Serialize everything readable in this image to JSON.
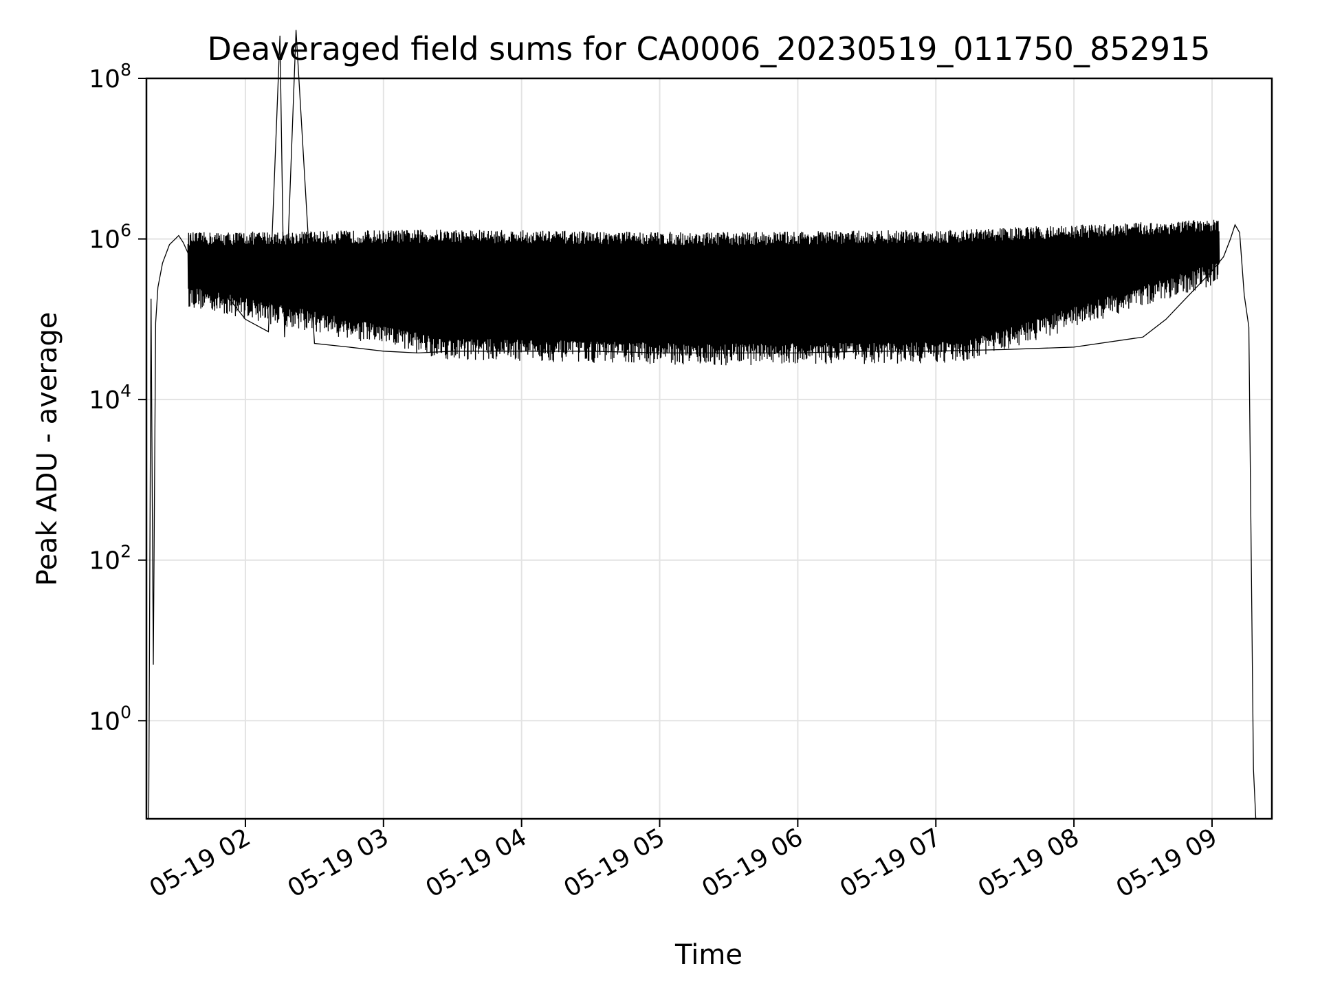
{
  "chart_data": {
    "type": "line",
    "title": "Deaveraged field sums for CA0006_20230519_011750_852915",
    "xlabel": "Time",
    "ylabel": "Peak ADU - average",
    "yscale": "log",
    "ylim": [
      0.06,
      100000000
    ],
    "xlim": [
      "2023-05-19 01:17",
      "2023-05-19 09:26"
    ],
    "grid": true,
    "line_color": "#000000",
    "x_ticks": [
      {
        "value": "2023-05-19 02:00",
        "label": "05-19 02"
      },
      {
        "value": "2023-05-19 03:00",
        "label": "05-19 03"
      },
      {
        "value": "2023-05-19 04:00",
        "label": "05-19 04"
      },
      {
        "value": "2023-05-19 05:00",
        "label": "05-19 05"
      },
      {
        "value": "2023-05-19 06:00",
        "label": "05-19 06"
      },
      {
        "value": "2023-05-19 07:00",
        "label": "05-19 07"
      },
      {
        "value": "2023-05-19 08:00",
        "label": "05-19 08"
      },
      {
        "value": "2023-05-19 09:00",
        "label": "05-19 09"
      }
    ],
    "y_ticks": [
      {
        "value": 1,
        "base": "10",
        "exp": "0"
      },
      {
        "value": 100,
        "base": "10",
        "exp": "2"
      },
      {
        "value": 10000,
        "base": "10",
        "exp": "4"
      },
      {
        "value": 1000000,
        "base": "10",
        "exp": "6"
      },
      {
        "value": 100000000,
        "base": "10",
        "exp": "8"
      }
    ],
    "series": [
      {
        "x": [
          "2023-05-19 01:18",
          "2023-05-19 01:19",
          "2023-05-19 01:20",
          "2023-05-19 01:21",
          "2023-05-19 01:22",
          "2023-05-19 01:24",
          "2023-05-19 01:27",
          "2023-05-19 01:31",
          "2023-05-19 01:33",
          "2023-05-19 01:37",
          "2023-05-19 01:42",
          "2023-05-19 01:48",
          "2023-05-19 01:53",
          "2023-05-19 02:00",
          "2023-05-19 02:10",
          "2023-05-19 02:15",
          "2023-05-19 02:17",
          "2023-05-19 02:22",
          "2023-05-19 02:30",
          "2023-05-19 02:45",
          "2023-05-19 03:00",
          "2023-05-19 03:15",
          "2023-05-19 03:30",
          "2023-05-19 04:00",
          "2023-05-19 04:30",
          "2023-05-19 05:00",
          "2023-05-19 05:30",
          "2023-05-19 06:00",
          "2023-05-19 06:30",
          "2023-05-19 07:00",
          "2023-05-19 07:30",
          "2023-05-19 08:00",
          "2023-05-19 08:30",
          "2023-05-19 08:40",
          "2023-05-19 08:50",
          "2023-05-19 09:00",
          "2023-05-19 09:05",
          "2023-05-19 09:08",
          "2023-05-19 09:10",
          "2023-05-19 09:12",
          "2023-05-19 09:14",
          "2023-05-19 09:16",
          "2023-05-19 09:18",
          "2023-05-19 09:19",
          "2023-05-19 09:20"
        ],
        "values": [
          0.06,
          180000,
          5,
          90000,
          250000,
          500000,
          850000,
          1100000,
          900000,
          500000,
          450000,
          220000,
          180000,
          100000,
          70000,
          340000000,
          60000,
          400000000,
          50000,
          45000,
          40000,
          38000,
          40000,
          40000,
          40000,
          38000,
          38000,
          38000,
          40000,
          40000,
          42000,
          45000,
          60000,
          100000,
          200000,
          400000,
          600000,
          1000000,
          1500000,
          1200000,
          200000,
          80000,
          0.25,
          0.06,
          0.06
        ]
      }
    ],
    "envelope": {
      "x_start": "2023-05-19 01:35",
      "x_end": "2023-05-19 09:03",
      "upper_values": [
        1100000,
        1200000,
        1100000,
        1200000,
        1600000
      ],
      "lower_values": [
        200000,
        45000,
        38000,
        40000,
        400000
      ]
    }
  }
}
